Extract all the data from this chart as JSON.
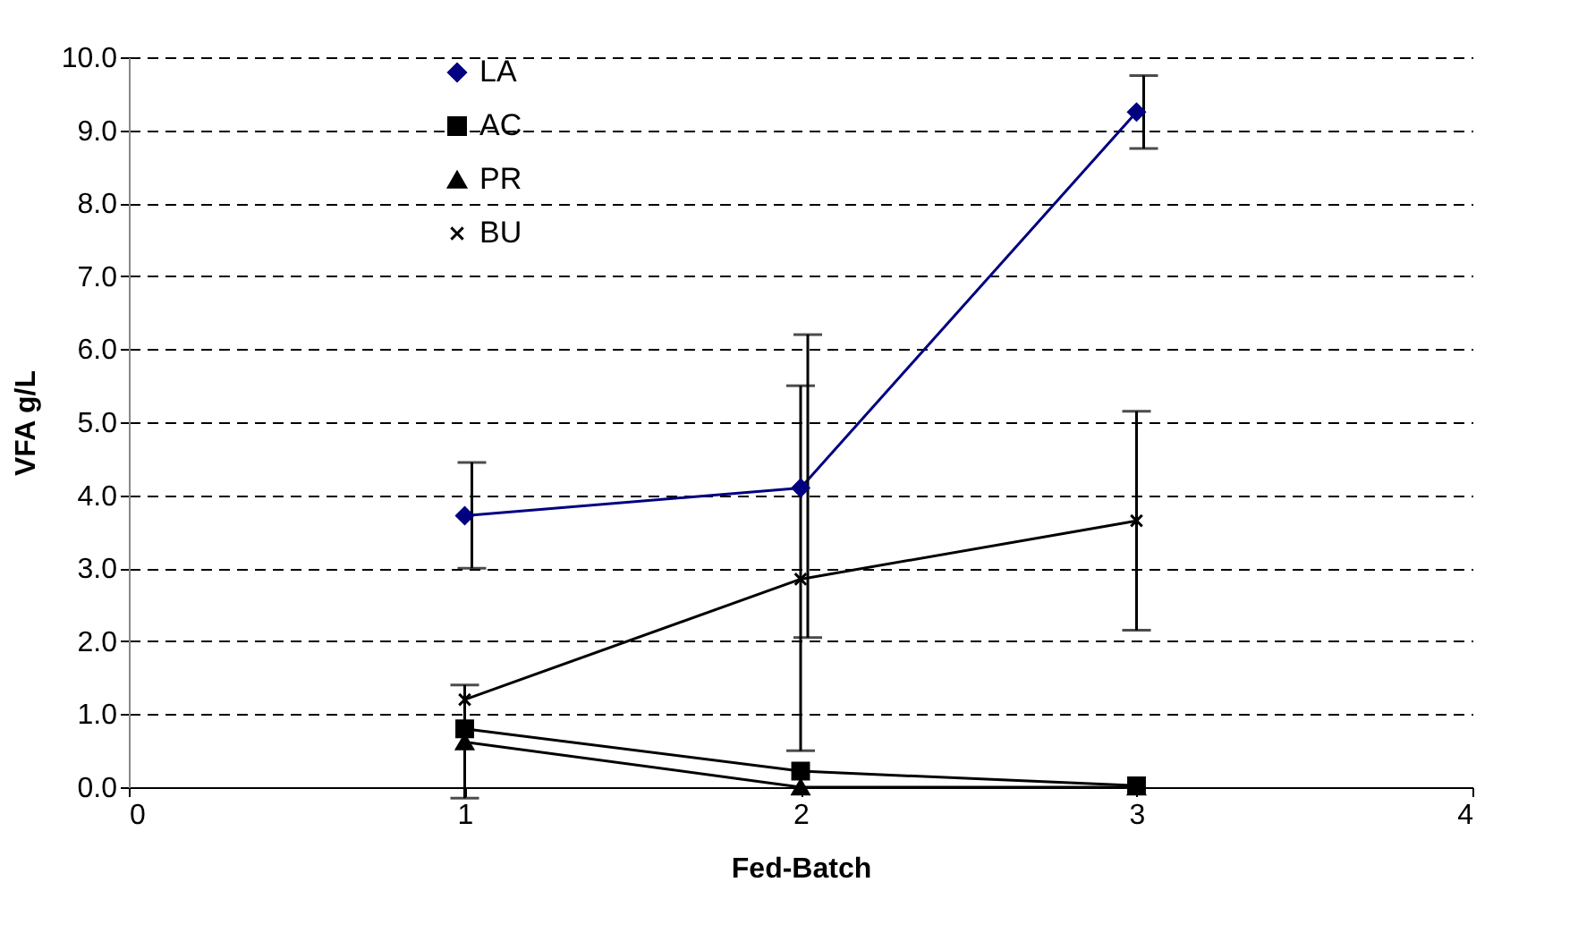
{
  "chart_data": {
    "type": "line",
    "xlabel": "Fed-Batch",
    "ylabel": "VFA g/L",
    "x": [
      1,
      2,
      3
    ],
    "xlim": [
      0,
      4
    ],
    "xticks": [
      {
        "value": 0,
        "label": "0"
      },
      {
        "value": 1,
        "label": "1"
      },
      {
        "value": 2,
        "label": "2"
      },
      {
        "value": 3,
        "label": "3"
      },
      {
        "value": 4,
        "label": "4"
      }
    ],
    "ylim": [
      0,
      10
    ],
    "yticks": [
      {
        "value": 0,
        "label": "0.0"
      },
      {
        "value": 1,
        "label": "1.0"
      },
      {
        "value": 2,
        "label": "2.0"
      },
      {
        "value": 3,
        "label": "3.0"
      },
      {
        "value": 4,
        "label": "4.0"
      },
      {
        "value": 5,
        "label": "5.0"
      },
      {
        "value": 6,
        "label": "6.0"
      },
      {
        "value": 7,
        "label": "7.0"
      },
      {
        "value": 8,
        "label": "8.0"
      },
      {
        "value": 9,
        "label": "9.0"
      },
      {
        "value": 10,
        "label": "10.0"
      }
    ],
    "grid": "y",
    "legend": "top left",
    "series": [
      {
        "name": "LA",
        "color": "#000080",
        "marker": "diamond",
        "values": [
          3.72,
          4.1,
          9.25
        ],
        "errors": [
          [
            3.0,
            4.45
          ],
          [
            2.05,
            6.2
          ],
          [
            8.75,
            9.75
          ]
        ]
      },
      {
        "name": "AC",
        "color": "#000000",
        "marker": "square",
        "values": [
          0.8,
          0.22,
          0.02
        ]
      },
      {
        "name": "PR",
        "color": "#000000",
        "marker": "triangle",
        "values": [
          0.62,
          0.0,
          0.0
        ],
        "errors": [
          [
            -0.15,
            1.4
          ],
          null,
          null
        ]
      },
      {
        "name": "BU",
        "color": "#000000",
        "marker": "cross",
        "values": [
          1.2,
          2.85,
          3.65
        ],
        "errors": [
          null,
          [
            0.5,
            5.5
          ],
          [
            2.15,
            5.15
          ]
        ]
      }
    ]
  }
}
